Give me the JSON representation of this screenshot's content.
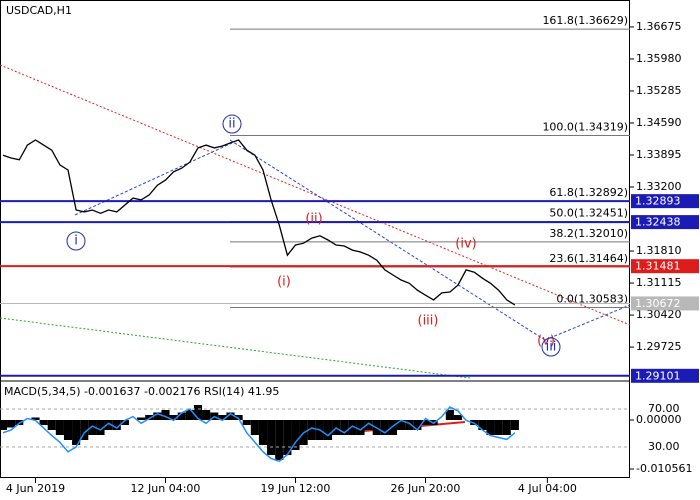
{
  "chart_data": {
    "type": "line",
    "title": "USDCAD,H1",
    "categories": [
      null,
      null,
      null,
      null,
      "4 Jun 2019",
      null,
      null,
      null,
      null,
      null,
      null,
      null,
      null,
      null,
      null,
      null,
      null,
      null,
      null,
      null,
      "12 Jun 04:00",
      null,
      null,
      null,
      null,
      null,
      null,
      null,
      null,
      null,
      null,
      null,
      null,
      null,
      null,
      null,
      "19 Jun 12:00",
      null,
      null,
      null,
      null,
      null,
      null,
      null,
      null,
      null,
      null,
      null,
      null,
      null,
      null,
      null,
      "26 Jun 20:00",
      null,
      null,
      null,
      null,
      null,
      null,
      null,
      null,
      null,
      null,
      null,
      null,
      null,
      null,
      "4 Jul 04:00"
    ],
    "series": [
      {
        "color": "#000000",
        "values": [
          1.3389,
          1.3383,
          1.3379,
          1.3411,
          1.3422,
          1.3411,
          1.34,
          1.3368,
          1.3357,
          1.327,
          1.3266,
          1.327,
          1.3263,
          1.327,
          1.3266,
          1.3281,
          1.3296,
          1.3292,
          1.3303,
          1.3324,
          1.3335,
          1.3353,
          1.3361,
          1.3374,
          1.3405,
          1.3411,
          1.3405,
          1.3409,
          1.3416,
          1.3422,
          1.34,
          1.3389,
          1.3357,
          1.3292,
          1.3237,
          1.3172,
          1.3194,
          1.3198,
          1.3209,
          1.3214,
          1.3205,
          1.3194,
          1.3192,
          1.3183,
          1.3179,
          1.3172,
          1.3161,
          1.314,
          1.3129,
          1.3118,
          1.3111,
          1.3096,
          1.3085,
          1.3075,
          1.309,
          1.3092,
          1.3107,
          1.314,
          1.3135,
          1.3122,
          1.3111,
          1.3096,
          1.3075,
          1.3064,
          null,
          null,
          null,
          null
        ]
      }
    ],
    "ylim": [
      1.2901,
      1.3726
    ],
    "yticks": [
      1.36675,
      {
        "value": 1.3598,
        "label": "1.35980"
      },
      1.35285,
      {
        "value": 1.3459,
        "label": "1.34590"
      },
      1.33895,
      {
        "value": 1.332,
        "label": "1.33200"
      },
      {
        "value": 1.3181,
        "label": "1.31810"
      },
      1.31115,
      {
        "value": 1.3042,
        "label": "1.30420"
      },
      1.29725
    ],
    "levels": [
      {
        "value": 1.32893,
        "color": "#1c1cb4"
      },
      {
        "value": 1.32438,
        "color": "#1c1cb4"
      },
      {
        "value": 1.31481,
        "color": "#dd1c1c"
      },
      {
        "value": 1.30672,
        "color": "#b8b8b8"
      },
      {
        "value": 1.29101,
        "color": "#1c1cb4"
      }
    ],
    "fibonacci": [
      {
        "label": "161.8(1.36629)",
        "value": 1.36629
      },
      {
        "label": "100.0(1.34319)",
        "value": 1.34319
      },
      {
        "label": "61.8(1.32892)",
        "value": 1.32892
      },
      {
        "label": "50.0(1.32451)",
        "value": 1.32451
      },
      {
        "label": "38.2(1.32010)",
        "value": 1.3201
      },
      {
        "label": "23.6(1.31464)",
        "value": 1.31464
      },
      {
        "label": "0.0(1.30583)",
        "value": 1.30583
      }
    ],
    "waves": [
      {
        "label": "i",
        "color": "#1c2fb4",
        "circled": true
      },
      {
        "label": "ii",
        "color": "#1c2fb4",
        "circled": true
      },
      {
        "label": "(ii)",
        "color": "#dd1c1c",
        "circled": false
      },
      {
        "label": "(i)",
        "color": "#dd1c1c",
        "circled": false
      },
      {
        "label": "(iii)",
        "color": "#dd1c1c",
        "circled": false
      },
      {
        "label": "(iv)",
        "color": "#dd1c1c",
        "circled": false
      },
      {
        "label": "(v)",
        "color": "#dd1c1c",
        "circled": false
      },
      {
        "label": "iii",
        "color": "#1c2fb4",
        "circled": true
      }
    ],
    "indicator": {
      "title": "MACD(5,34,5) -0.001637 -0.002176 RSI(14) 41.95",
      "macd": [
        -0.002,
        -0.0015,
        -0.001,
        0,
        0.0005,
        -0.001,
        -0.002,
        -0.003,
        -0.004,
        -0.005,
        -0.004,
        -0.003,
        -0.003,
        -0.002,
        -0.002,
        -0.001,
        0,
        0.0005,
        0.001,
        0.0015,
        0.002,
        0.001,
        0.0015,
        0.002,
        0.003,
        0.002,
        0.0015,
        0.001,
        0.0015,
        0.001,
        -0.001,
        -0.003,
        -0.005,
        -0.007,
        -0.008,
        -0.007,
        -0.006,
        -0.005,
        -0.004,
        -0.004,
        -0.004,
        -0.003,
        -0.003,
        -0.003,
        -0.003,
        -0.002,
        -0.003,
        -0.003,
        -0.003,
        -0.002,
        -0.002,
        -0.002,
        -0.001,
        -0.001,
        0,
        0.002,
        0.001,
        0,
        -0.001,
        -0.002,
        -0.003,
        -0.003,
        -0.003,
        -0.002,
        null,
        null,
        null,
        null
      ],
      "macd_color": "#000000",
      "macd_ylim": [
        -0.0114,
        0.0076
      ],
      "macd_ticks": [
        {
          "value": 0,
          "label": "0.00000"
        },
        -0.010561
      ],
      "rsi": [
        45,
        48,
        55,
        60,
        58,
        50,
        42,
        35,
        25,
        30,
        45,
        52,
        48,
        55,
        50,
        58,
        62,
        55,
        60,
        65,
        62,
        58,
        66,
        70,
        60,
        55,
        62,
        58,
        65,
        60,
        45,
        35,
        25,
        18,
        15,
        22,
        35,
        45,
        50,
        48,
        42,
        50,
        45,
        52,
        48,
        55,
        50,
        45,
        52,
        58,
        55,
        48,
        60,
        55,
        62,
        72,
        68,
        58,
        55,
        48,
        42,
        40,
        38,
        45,
        null,
        null,
        null,
        null
      ],
      "rsi_color": "#1e90ff",
      "rsi_ylim": [
        0,
        100
      ],
      "rsi_ticks": [
        {
          "value": 70,
          "label": "70.00"
        },
        {
          "value": 30,
          "label": "30.00"
        }
      ]
    }
  }
}
